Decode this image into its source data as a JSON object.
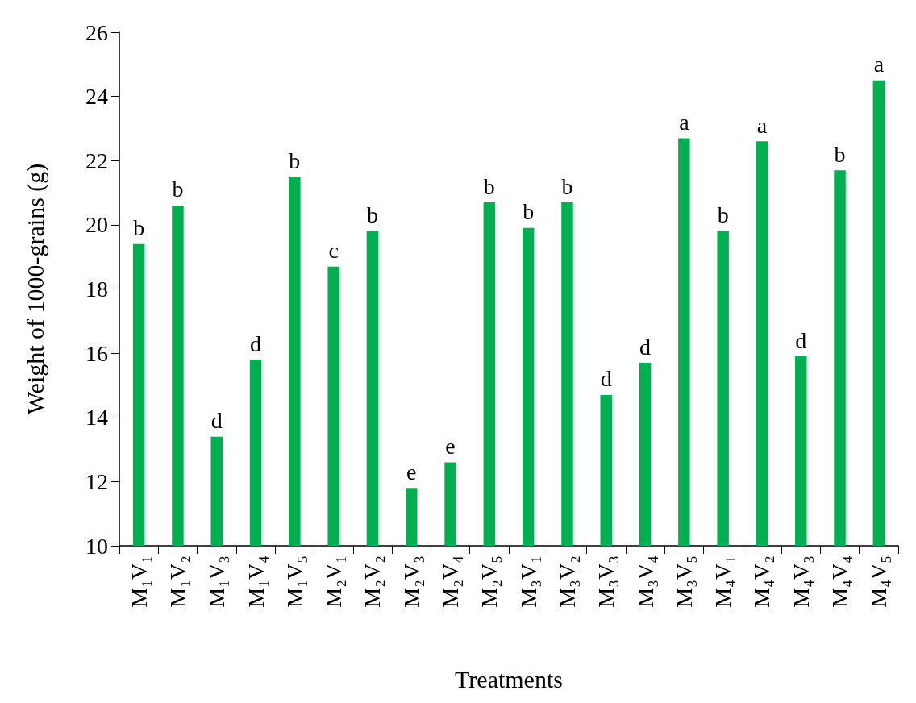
{
  "chart_data": {
    "type": "bar",
    "xlabel": "Treatments",
    "ylabel": "Weight of 1000-grains (g)",
    "color": "#00b050",
    "categories": [
      "M₁V₁",
      "M₁V₂",
      "M₁V₃",
      "M₁V₄",
      "M₁V₅",
      "M₂V₁",
      "M₂V₂",
      "M₂V₃",
      "M₂V₄",
      "M₂V₅",
      "M₃V₁",
      "M₃V₂",
      "M₃V₃",
      "M₃V₄",
      "M₃V₅",
      "M₄V₁",
      "M₄V₂",
      "M₄V₃",
      "M₄V₄",
      "M₄V₅"
    ],
    "values": [
      19.4,
      20.6,
      13.4,
      15.8,
      21.5,
      18.7,
      19.8,
      11.8,
      12.6,
      20.7,
      19.9,
      20.7,
      14.7,
      15.7,
      22.7,
      19.8,
      22.6,
      15.9,
      21.7,
      24.5
    ],
    "ylim": [
      10,
      26
    ],
    "yticks": [
      10,
      12,
      14,
      16,
      18,
      20,
      22,
      24,
      26
    ],
    "grid": false,
    "annotations": [
      {
        "text": "b",
        "x": "M₁V₁",
        "y": 19.4
      },
      {
        "text": "b",
        "x": "M₁V₂",
        "y": 20.6
      },
      {
        "text": "d",
        "x": "M₁V₃",
        "y": 13.4
      },
      {
        "text": "d",
        "x": "M₁V₄",
        "y": 15.8
      },
      {
        "text": "b",
        "x": "M₁V₅",
        "y": 21.5
      },
      {
        "text": "c",
        "x": "M₂V₁",
        "y": 18.7
      },
      {
        "text": "b",
        "x": "M₂V₂",
        "y": 19.8
      },
      {
        "text": "e",
        "x": "M₂V₃",
        "y": 11.8
      },
      {
        "text": "e",
        "x": "M₂V₄",
        "y": 12.6
      },
      {
        "text": "b",
        "x": "M₂V₅",
        "y": 20.7
      },
      {
        "text": "b",
        "x": "M₃V₁",
        "y": 19.9
      },
      {
        "text": "b",
        "x": "M₃V₂",
        "y": 20.7
      },
      {
        "text": "d",
        "x": "M₃V₃",
        "y": 14.7
      },
      {
        "text": "d",
        "x": "M₃V₄",
        "y": 15.7
      },
      {
        "text": "a",
        "x": "M₃V₅",
        "y": 22.7
      },
      {
        "text": "b",
        "x": "M₄V₁",
        "y": 19.8
      },
      {
        "text": "a",
        "x": "M₄V₂",
        "y": 22.6
      },
      {
        "text": "d",
        "x": "M₄V₃",
        "y": 15.9
      },
      {
        "text": "b",
        "x": "M₄V₄",
        "y": 21.7
      },
      {
        "text": "a",
        "x": "M₄V₅",
        "y": 24.5
      }
    ]
  }
}
